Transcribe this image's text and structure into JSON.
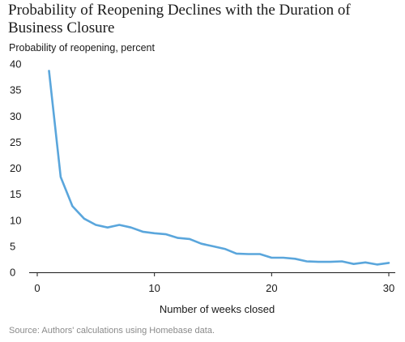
{
  "chart_data": {
    "type": "line",
    "title": "Probability of Reopening Declines with the Duration of Business Closure",
    "ylabel": "Probability of reopening, percent",
    "xlabel": "Number of weeks closed",
    "source": "Source: Authors' calculations using Homebase data.",
    "xlim": [
      0,
      30
    ],
    "ylim": [
      0,
      40
    ],
    "xticks": [
      0,
      10,
      20,
      30
    ],
    "yticks": [
      0,
      5,
      10,
      15,
      20,
      25,
      30,
      35,
      40
    ],
    "grid": false,
    "line_color": "#5aa6dc",
    "series": [
      {
        "x": [
          1,
          2,
          3,
          4,
          5,
          6,
          7,
          8,
          9,
          10,
          11,
          12,
          13,
          14,
          15,
          16,
          17,
          18,
          19,
          20,
          21,
          22,
          23,
          24,
          25,
          26,
          27,
          28,
          29,
          30
        ],
        "values": [
          38.7,
          18.3,
          12.7,
          10.3,
          9.1,
          8.6,
          9.1,
          8.6,
          7.8,
          7.5,
          7.3,
          6.6,
          6.4,
          5.5,
          5.0,
          4.5,
          3.6,
          3.5,
          3.5,
          2.8,
          2.8,
          2.6,
          2.1,
          2.0,
          2.0,
          2.1,
          1.6,
          1.9,
          1.5,
          1.8
        ]
      }
    ]
  }
}
